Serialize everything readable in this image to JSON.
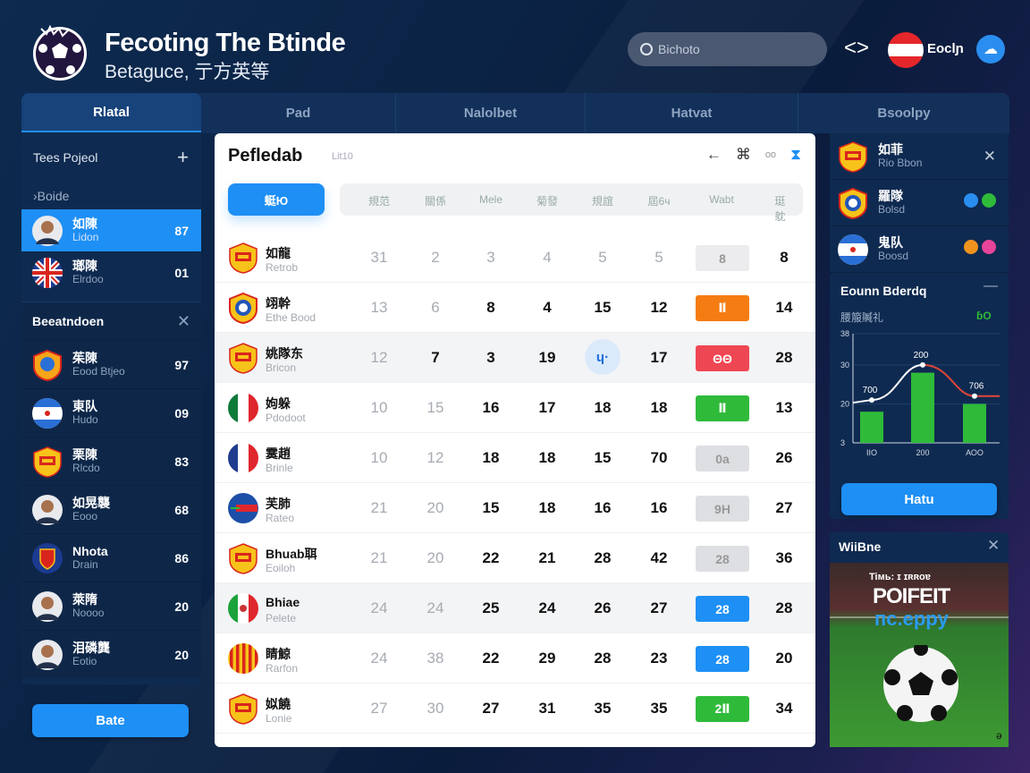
{
  "header": {
    "title": "Fecoting The Btinde",
    "subtitle": "Betaguce, 亍方英等",
    "search_placeholder": "Bichoto",
    "language": "Eoclɲ"
  },
  "tabs": [
    {
      "label": "Rlatal",
      "active": true
    },
    {
      "label": "Pad"
    },
    {
      "label": "Nalolbet"
    },
    {
      "label": "Hatvat"
    },
    {
      "label": "Bsoolpy"
    }
  ],
  "sidebar": {
    "header": "Tees Pojeol",
    "sub": "›Boide",
    "top_items": [
      {
        "name": "如陳",
        "sub": "Lidon",
        "value": "87",
        "avatar": "person",
        "active": true
      },
      {
        "name": "瑯陳",
        "sub": "Elrdoo",
        "value": "01",
        "avatar": "uk-flag"
      }
    ],
    "section_title": "Beeatndoen",
    "items": [
      {
        "name": "茱陳",
        "sub": "Eood Btjeo",
        "value": "97",
        "avatar": "crest"
      },
      {
        "name": "東队",
        "sub": "Hudo",
        "value": "09",
        "avatar": "blue-flag"
      },
      {
        "name": "栗陳",
        "sub": "Rlcdo",
        "value": "83",
        "avatar": "italy-flag"
      },
      {
        "name": "如晃襲",
        "sub": "Eooo",
        "value": "68",
        "avatar": "person"
      },
      {
        "name": "Nhota",
        "sub": "Drain",
        "value": "86",
        "avatar": "shield"
      },
      {
        "name": "萊隋",
        "sub": "Noooo",
        "value": "20",
        "avatar": "person"
      },
      {
        "name": "泪磷龔",
        "sub": "Eotio",
        "value": "20",
        "avatar": "person"
      }
    ],
    "button": "Bate"
  },
  "main": {
    "title": "Pefledab",
    "caption": "Lit10",
    "primary_tab": "蜓Ю",
    "columns": [
      "規范",
      "關係",
      "Mele",
      "菊發",
      "規誼",
      "屆6ч",
      "Wabt",
      "珽躭"
    ],
    "rows": [
      {
        "name": "如龍",
        "sub": "Retrob",
        "crest": "yellow",
        "cells": [
          "31",
          "2",
          "3",
          "4",
          "5",
          "5"
        ],
        "badge": "8",
        "badge_color": "#ececee",
        "badge_text": "#999",
        "last": "8",
        "dim": 6
      },
      {
        "name": "翊幹",
        "sub": "Ethe Bood",
        "crest": "red",
        "cells": [
          "13",
          "6",
          "8",
          "4",
          "15",
          "12"
        ],
        "badge": "Ⅱ",
        "badge_color": "#f57c12",
        "last": "14",
        "dim": 2
      },
      {
        "name": "姚隊东",
        "sub": "Bricon",
        "crest": "yellow",
        "cells": [
          "12",
          "7",
          "3",
          "19",
          "ɥ·",
          "17"
        ],
        "badge": "ΘΘ",
        "badge_color": "#ef4653",
        "last": "28",
        "dim": 1,
        "highlight": true,
        "circle_col": 4
      },
      {
        "name": "姁躲",
        "sub": "Pdodoot",
        "crest": "italy",
        "cells": [
          "10",
          "15",
          "16",
          "17",
          "18",
          "18"
        ],
        "badge": "Ⅱ",
        "badge_color": "#2fba3a",
        "last": "13",
        "dim": 2
      },
      {
        "name": "霙趙",
        "sub": "Brinle",
        "crest": "france",
        "cells": [
          "10",
          "12",
          "18",
          "18",
          "15",
          "70"
        ],
        "badge": "0a",
        "badge_color": "#dedfe2",
        "badge_text": "#999",
        "last": "26",
        "dim": 2
      },
      {
        "name": "芙肺",
        "sub": "Rateo",
        "crest": "globe",
        "cells": [
          "21",
          "20",
          "15",
          "18",
          "16",
          "16"
        ],
        "badge": "9H",
        "badge_color": "#dedfe2",
        "badge_text": "#999",
        "last": "27",
        "dim": 2
      },
      {
        "name": "Bhuab聑",
        "sub": "Eoiloh",
        "crest": "yellow",
        "cells": [
          "21",
          "20",
          "22",
          "21",
          "28",
          "42"
        ],
        "badge": "28",
        "badge_color": "#dedfe2",
        "badge_text": "#999",
        "last": "36",
        "dim": 2
      },
      {
        "name": "Bhiae",
        "sub": "Pelete",
        "crest": "mexico",
        "cells": [
          "24",
          "24",
          "25",
          "24",
          "26",
          "27"
        ],
        "badge": "28",
        "badge_color": "#1e8ff5",
        "last": "28",
        "dim": 2,
        "highlight": true
      },
      {
        "name": "睛鯨",
        "sub": "Rarfon",
        "crest": "stripes",
        "cells": [
          "24",
          "38",
          "22",
          "29",
          "28",
          "23"
        ],
        "badge": "28",
        "badge_color": "#1e8ff5",
        "last": "20",
        "dim": 2
      },
      {
        "name": "姒饒",
        "sub": "Lonie",
        "crest": "yellow",
        "cells": [
          "27",
          "30",
          "27",
          "31",
          "35",
          "35"
        ],
        "badge": "2Ⅱ",
        "badge_color": "#2fba3a",
        "last": "34",
        "dim": 2
      }
    ]
  },
  "right": {
    "items": [
      {
        "name": "如菲",
        "sub": "Rio Bbon",
        "crest": "yellow",
        "action": "close"
      },
      {
        "name": "羅隊",
        "sub": "Bolsd",
        "crest": "red",
        "dots": [
          "#2a8ef0",
          "#2fba3a"
        ]
      },
      {
        "name": "鬼队",
        "sub": "Boosd",
        "crest": "blue-flag",
        "dots": [
          "#f0931e",
          "#e8449a"
        ]
      }
    ],
    "chart_card": {
      "title": "Eounn Bderdq",
      "subtitle": "腰箙贓礼",
      "badge": "ɓO",
      "button": "Hatu"
    },
    "widget": {
      "title": "WiiBne",
      "image_line1": "Tiмь: ɪ ɪʀʀoɐ",
      "image_line2": "POIFEIT",
      "image_line3": "пс.ерру",
      "corner": "ə"
    }
  },
  "chart_data": {
    "type": "bar",
    "categories": [
      "ΙΙΟ",
      "200",
      "ΑΟΟ"
    ],
    "values": [
      18,
      28,
      20
    ],
    "line": [
      21,
      30,
      22
    ],
    "data_labels": [
      "700",
      "200",
      "706"
    ],
    "yticks": [
      "3",
      "20",
      "30",
      "38"
    ],
    "ylim": [
      10,
      38
    ],
    "bar_color": "#2fba3a"
  },
  "colors": {
    "accent": "#1e8ff5",
    "panel": "#0f2a50"
  }
}
